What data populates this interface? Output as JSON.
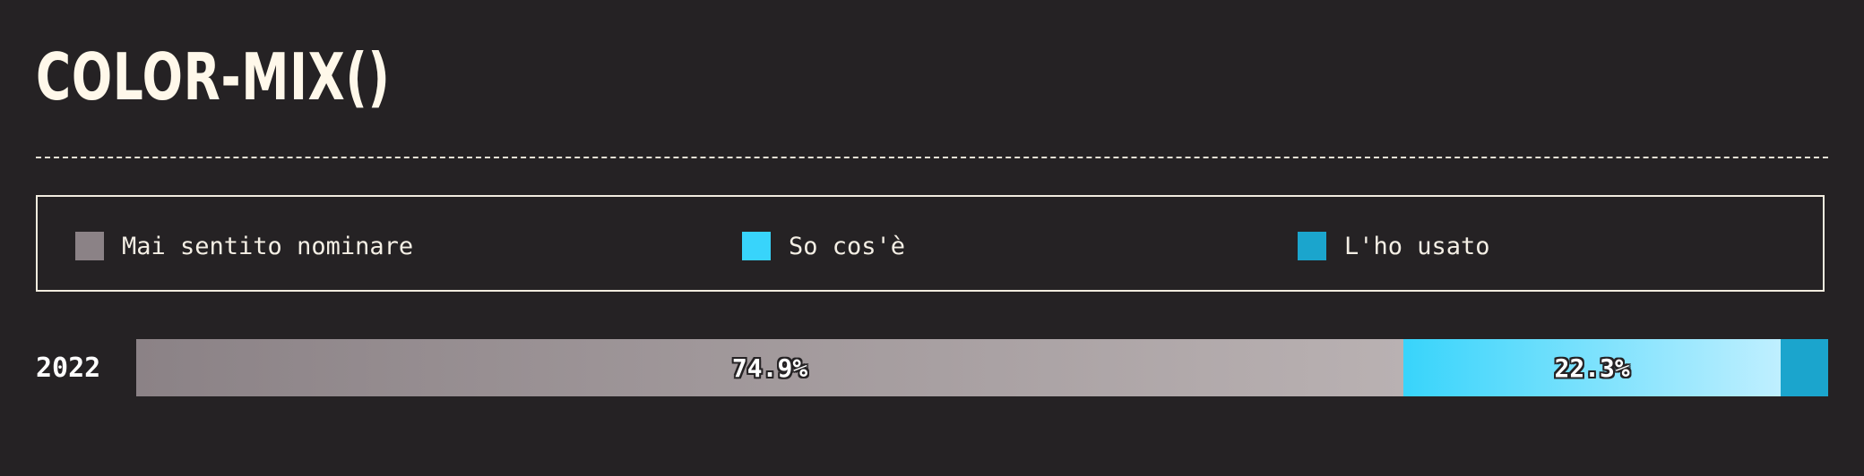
{
  "title": "COLOR-MIX()",
  "legend": [
    {
      "label": "Mai sentito nominare",
      "color": "#8b8286"
    },
    {
      "label": "So cos'è",
      "color": "#38d4fb"
    },
    {
      "label": "L'ho usato",
      "color": "#1ba5cd"
    }
  ],
  "chart_data": {
    "type": "bar",
    "orientation": "horizontal",
    "stacked": true,
    "normalized_to": 100,
    "categories": [
      "2022"
    ],
    "series": [
      {
        "name": "Mai sentito nominare",
        "values": [
          74.9
        ],
        "label": "74.9%",
        "color": "#8b8286"
      },
      {
        "name": "So cos'è",
        "values": [
          22.3
        ],
        "label": "22.3%",
        "color": "#38d4fb"
      },
      {
        "name": "L'ho usato",
        "values": [
          2.8
        ],
        "label": "",
        "color": "#1ba5cd"
      }
    ],
    "legend_placement": "top",
    "grid": false
  }
}
